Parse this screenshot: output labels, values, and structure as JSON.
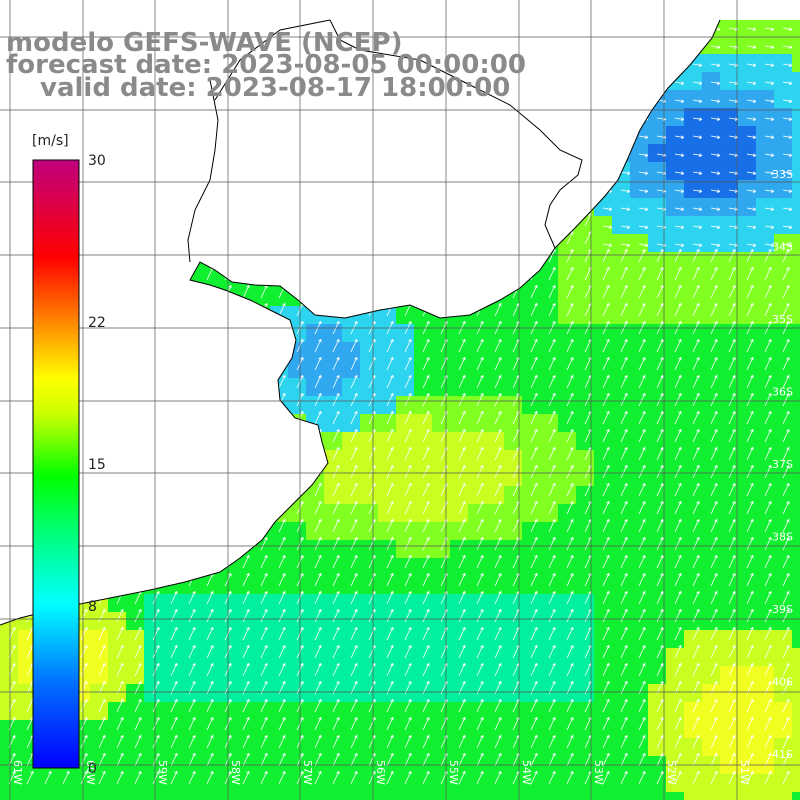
{
  "title": {
    "model": "modelo GEFS-WAVE (NCEP)",
    "forecast": "forecast date: 2023-08-05 00:00:00",
    "valid": "valid date: 2023-08-17 18:00:00"
  },
  "colorbar": {
    "unit": "[m/s]",
    "ticks": [
      "30",
      "22",
      "15",
      "8",
      "0"
    ],
    "tick_values": [
      30,
      22,
      15,
      8,
      0
    ],
    "colors": [
      "#0000ff",
      "#00a0ff",
      "#00ffff",
      "#00ff60",
      "#00ff00",
      "#c0ff00",
      "#ffff00",
      "#ffa000",
      "#ff4000",
      "#ff0000",
      "#e00060",
      "#c0007f"
    ]
  },
  "map": {
    "lon_labels": [
      "61W",
      "60W",
      "59W",
      "58W",
      "57W",
      "56W",
      "55W",
      "54W",
      "53W",
      "52W",
      "51W"
    ],
    "lat_labels": [
      "33S",
      "34S",
      "35S",
      "36S",
      "37S",
      "38S",
      "39S",
      "40S",
      "41S"
    ],
    "field_colors": {
      "deep_blue": "#1870e8",
      "mid_blue": "#30a8f0",
      "cyan": "#2cd4f0",
      "cyan_green": "#00f0a0",
      "green": "#10f030",
      "light_green": "#80ff20",
      "yellow_green": "#c8ff20",
      "yellow": "#f0ff20"
    }
  }
}
